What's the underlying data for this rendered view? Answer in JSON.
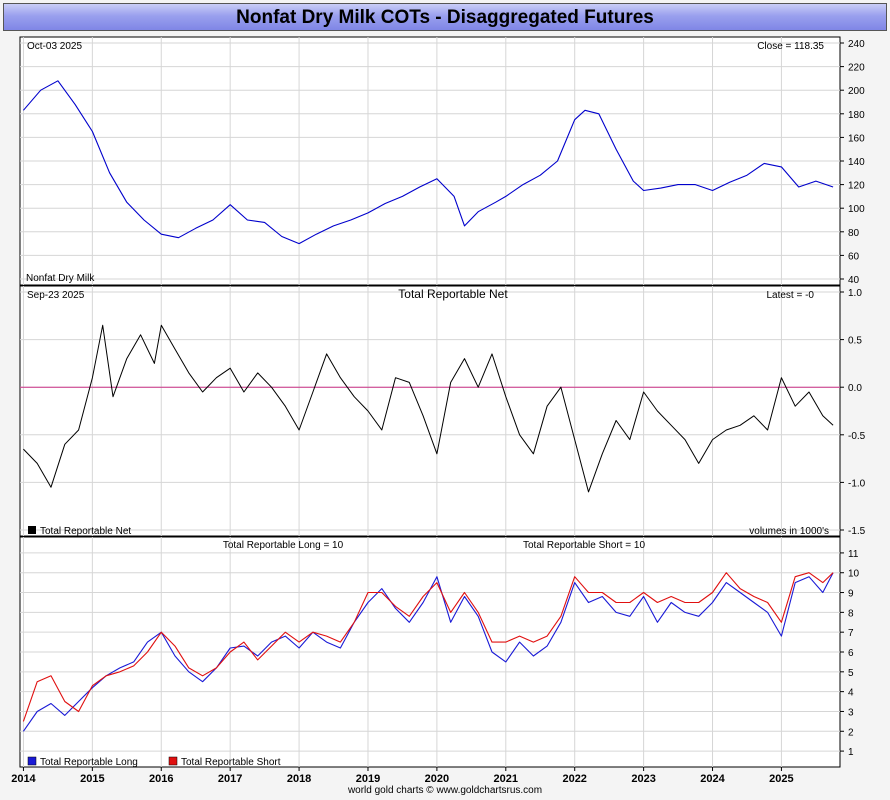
{
  "header": {
    "title": "Nonfat Dry Milk COTs - Disaggregated Futures",
    "footer": "world gold charts © www.goldchartsrus.com"
  },
  "colors": {
    "price_line": "#0000cc",
    "net_line": "#000000",
    "zero_line": "#cc3388",
    "long_line": "#1a1ad6",
    "short_line": "#e01010",
    "title_bar": "#9aa0ee"
  },
  "chart_data": [
    {
      "type": "line",
      "panel": "price",
      "top_left_label": "Oct-03  2025",
      "top_right_label": "Close = 118.35",
      "bottom_left_label": "Nonfat Dry Milk",
      "ylim": [
        40,
        240
      ],
      "yticks": [
        "40",
        "60",
        "80",
        "100",
        "120",
        "140",
        "160",
        "180",
        "200",
        "220",
        "240"
      ],
      "x": [
        2014.0,
        2014.25,
        2014.5,
        2014.75,
        2015.0,
        2015.25,
        2015.5,
        2015.75,
        2016.0,
        2016.25,
        2016.5,
        2016.75,
        2017.0,
        2017.25,
        2017.5,
        2017.75,
        2018.0,
        2018.25,
        2018.5,
        2018.75,
        2019.0,
        2019.25,
        2019.5,
        2019.75,
        2020.0,
        2020.25,
        2020.4,
        2020.6,
        2020.85,
        2021.0,
        2021.25,
        2021.5,
        2021.75,
        2022.0,
        2022.15,
        2022.35,
        2022.6,
        2022.85,
        2023.0,
        2023.25,
        2023.5,
        2023.75,
        2024.0,
        2024.25,
        2024.5,
        2024.75,
        2025.0,
        2025.25,
        2025.5,
        2025.75
      ],
      "series": [
        {
          "values": [
            183,
            200,
            208,
            188,
            165,
            130,
            105,
            90,
            78,
            75,
            83,
            90,
            103,
            90,
            88,
            76,
            70,
            78,
            85,
            90,
            96,
            104,
            110,
            118,
            125,
            110,
            85,
            97,
            105,
            110,
            120,
            128,
            140,
            175,
            183,
            180,
            150,
            123,
            115,
            117,
            120,
            120,
            115,
            122,
            128,
            138,
            135,
            118,
            123,
            118
          ]
        }
      ]
    },
    {
      "type": "line",
      "panel": "net",
      "top_left_label": "Sep-23  2025",
      "title": "Total Reportable Net",
      "top_right_label": "Latest = -0",
      "legend": "Total Reportable Net",
      "units_note": "volumes in 1000's",
      "ylim": [
        -1.5,
        1.0
      ],
      "yticks": [
        "1.0",
        "0.5",
        "0.0",
        "-0.5",
        "-1.0",
        "-1.5"
      ],
      "x": [
        2014.0,
        2014.2,
        2014.4,
        2014.6,
        2014.8,
        2015.0,
        2015.15,
        2015.3,
        2015.5,
        2015.7,
        2015.9,
        2016.0,
        2016.2,
        2016.4,
        2016.6,
        2016.8,
        2017.0,
        2017.2,
        2017.4,
        2017.6,
        2017.8,
        2018.0,
        2018.2,
        2018.4,
        2018.6,
        2018.8,
        2019.0,
        2019.2,
        2019.4,
        2019.6,
        2019.8,
        2020.0,
        2020.2,
        2020.4,
        2020.6,
        2020.8,
        2021.0,
        2021.2,
        2021.4,
        2021.6,
        2021.8,
        2022.0,
        2022.2,
        2022.4,
        2022.6,
        2022.8,
        2023.0,
        2023.2,
        2023.4,
        2023.6,
        2023.8,
        2024.0,
        2024.2,
        2024.4,
        2024.6,
        2024.8,
        2025.0,
        2025.2,
        2025.4,
        2025.6,
        2025.75
      ],
      "series": [
        {
          "name": "Total Reportable Net",
          "values": [
            -0.65,
            -0.8,
            -1.05,
            -0.6,
            -0.45,
            0.1,
            0.65,
            -0.1,
            0.3,
            0.55,
            0.25,
            0.65,
            0.4,
            0.15,
            -0.05,
            0.1,
            0.2,
            -0.05,
            0.15,
            0.0,
            -0.2,
            -0.45,
            -0.05,
            0.35,
            0.1,
            -0.1,
            -0.25,
            -0.45,
            0.1,
            0.05,
            -0.3,
            -0.7,
            0.05,
            0.3,
            0.0,
            0.35,
            -0.1,
            -0.5,
            -0.7,
            -0.2,
            0.0,
            -0.55,
            -1.1,
            -0.7,
            -0.35,
            -0.55,
            -0.05,
            -0.25,
            -0.4,
            -0.55,
            -0.8,
            -0.55,
            -0.45,
            -0.4,
            -0.3,
            -0.45,
            0.1,
            -0.2,
            -0.05,
            -0.3,
            -0.4
          ]
        }
      ]
    },
    {
      "type": "line",
      "panel": "long_short",
      "title_left": "Total Reportable Long = 10",
      "title_right": "Total Reportable Short = 10",
      "ylim": [
        0.5,
        11.5
      ],
      "yticks": [
        "1",
        "2",
        "3",
        "4",
        "5",
        "6",
        "7",
        "8",
        "9",
        "10",
        "11"
      ],
      "x": [
        2014.0,
        2014.2,
        2014.4,
        2014.6,
        2014.8,
        2015.0,
        2015.2,
        2015.4,
        2015.6,
        2015.8,
        2016.0,
        2016.2,
        2016.4,
        2016.6,
        2016.8,
        2017.0,
        2017.2,
        2017.4,
        2017.6,
        2017.8,
        2018.0,
        2018.2,
        2018.4,
        2018.6,
        2018.8,
        2019.0,
        2019.2,
        2019.4,
        2019.6,
        2019.8,
        2020.0,
        2020.2,
        2020.4,
        2020.6,
        2020.8,
        2021.0,
        2021.2,
        2021.4,
        2021.6,
        2021.8,
        2022.0,
        2022.2,
        2022.4,
        2022.6,
        2022.8,
        2023.0,
        2023.2,
        2023.4,
        2023.6,
        2023.8,
        2024.0,
        2024.2,
        2024.4,
        2024.6,
        2024.8,
        2025.0,
        2025.2,
        2025.4,
        2025.6,
        2025.75
      ],
      "x_ticks": [
        "2014",
        "2015",
        "2016",
        "2017",
        "2018",
        "2019",
        "2020",
        "2021",
        "2022",
        "2023",
        "2024",
        "2025"
      ],
      "legend": [
        "Total Reportable Long",
        "Total Reportable Short"
      ],
      "series": [
        {
          "name": "Total Reportable Long",
          "values": [
            2.0,
            3.0,
            3.4,
            2.8,
            3.5,
            4.2,
            4.8,
            5.2,
            5.5,
            6.5,
            7.0,
            5.8,
            5.0,
            4.5,
            5.2,
            6.2,
            6.3,
            5.8,
            6.5,
            6.8,
            6.2,
            7.0,
            6.5,
            6.2,
            7.5,
            8.5,
            9.2,
            8.2,
            7.5,
            8.5,
            9.8,
            7.5,
            8.8,
            7.8,
            6.0,
            5.5,
            6.5,
            5.8,
            6.3,
            7.5,
            9.5,
            8.5,
            8.8,
            8.0,
            7.8,
            8.8,
            7.5,
            8.5,
            8.0,
            7.8,
            8.5,
            9.5,
            9.0,
            8.5,
            8.0,
            6.8,
            9.5,
            9.8,
            9.0,
            10.0
          ]
        },
        {
          "name": "Total Reportable Short",
          "values": [
            2.5,
            4.5,
            4.8,
            3.5,
            3.0,
            4.3,
            4.8,
            5.0,
            5.3,
            6.0,
            7.0,
            6.3,
            5.2,
            4.8,
            5.2,
            6.0,
            6.5,
            5.6,
            6.3,
            7.0,
            6.5,
            7.0,
            6.8,
            6.5,
            7.5,
            9.0,
            9.0,
            8.3,
            7.8,
            8.8,
            9.5,
            8.0,
            9.0,
            8.0,
            6.5,
            6.5,
            6.8,
            6.5,
            6.8,
            7.8,
            9.8,
            9.0,
            9.0,
            8.5,
            8.5,
            9.0,
            8.5,
            8.8,
            8.5,
            8.5,
            9.0,
            10.0,
            9.2,
            8.8,
            8.5,
            7.5,
            9.8,
            10.0,
            9.5,
            10.0
          ]
        }
      ]
    }
  ]
}
